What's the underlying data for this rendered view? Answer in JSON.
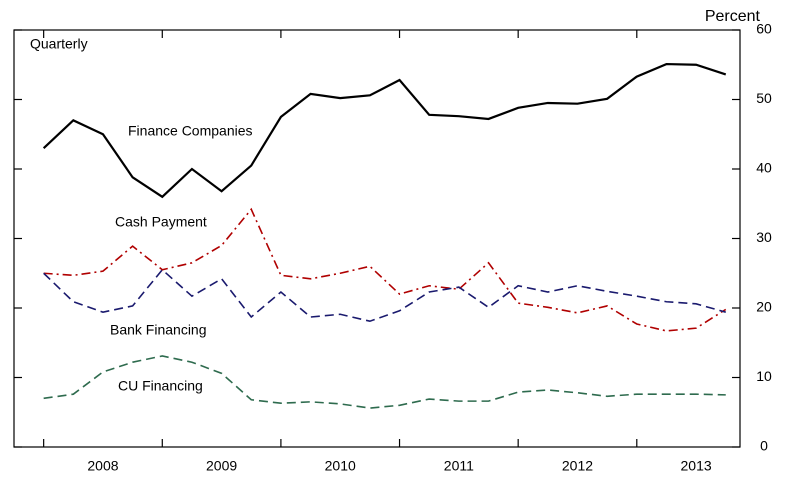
{
  "chart_data": {
    "type": "line",
    "subtitle": "Quarterly",
    "y_axis_label": "Percent",
    "x": [
      2008,
      2008.25,
      2008.5,
      2008.75,
      2009,
      2009.25,
      2009.5,
      2009.75,
      2010,
      2010.25,
      2010.5,
      2010.75,
      2011,
      2011.25,
      2011.5,
      2011.75,
      2012,
      2012.25,
      2012.5,
      2012.75,
      2013,
      2013.25,
      2013.5,
      2013.75
    ],
    "series": [
      {
        "name": "Finance Companies",
        "color": "#000000",
        "dash": "solid",
        "values": [
          43,
          47,
          45,
          38.8,
          36,
          40,
          36.8,
          40.5,
          47.5,
          50.8,
          50.2,
          50.6,
          52.8,
          47.8,
          47.6,
          47.2,
          48.8,
          49.5,
          49.4,
          50.1,
          53.3,
          55.1,
          55,
          53.6
        ]
      },
      {
        "name": "Cash Payment",
        "color": "#b00000",
        "dash": "dashdot",
        "values": [
          25,
          24.7,
          25.3,
          28.9,
          25.5,
          26.5,
          29,
          34.2,
          24.7,
          24.2,
          25,
          26,
          22,
          23.2,
          22.7,
          26.5,
          20.7,
          20.1,
          19.3,
          20.3,
          17.7,
          16.7,
          17.1,
          19.8
        ]
      },
      {
        "name": "Bank Financing",
        "color": "#1a1a6e",
        "dash": "dashed",
        "values": [
          25,
          20.9,
          19.4,
          20.3,
          25.5,
          21.7,
          24.2,
          18.7,
          22.3,
          18.7,
          19.1,
          18.1,
          19.6,
          22.3,
          23,
          20.1,
          23.2,
          22.3,
          23.2,
          22.4,
          21.7,
          20.9,
          20.6,
          19.4
        ]
      },
      {
        "name": "CU Financing",
        "color": "#2e6b4e",
        "dash": "dashed",
        "values": [
          7,
          7.6,
          10.8,
          12.2,
          13.1,
          12.2,
          10.6,
          6.8,
          6.3,
          6.5,
          6.2,
          5.6,
          6,
          6.9,
          6.6,
          6.6,
          7.9,
          8.2,
          7.8,
          7.3,
          7.6,
          7.6,
          7.6,
          7.5
        ]
      }
    ],
    "xlim": [
      2007.75,
      2013.87
    ],
    "xticks": [
      {
        "value": 2008.5,
        "label": "2008"
      },
      {
        "value": 2009.5,
        "label": "2009"
      },
      {
        "value": 2010.5,
        "label": "2010"
      },
      {
        "value": 2011.5,
        "label": "2011"
      },
      {
        "value": 2012.5,
        "label": "2012"
      },
      {
        "value": 2013.5,
        "label": "2013"
      }
    ],
    "ylim": [
      0,
      60
    ],
    "yticks": [
      0,
      10,
      20,
      30,
      40,
      50,
      60
    ],
    "grid": false
  }
}
